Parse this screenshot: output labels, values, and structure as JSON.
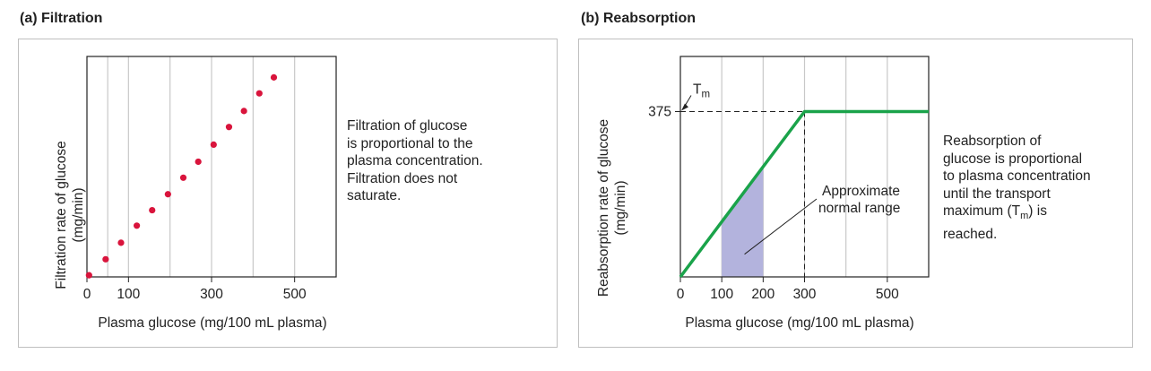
{
  "panels": {
    "a": {
      "title": "(a) Filtration",
      "description": [
        "Filtration of glucose",
        "is proportional to the",
        "plasma concentration.",
        "Filtration does not",
        "saturate."
      ]
    },
    "b": {
      "title": "(b) Reabsorption",
      "description": [
        "Reabsorption of",
        "glucose is proportional",
        "to plasma concentration",
        "until the transport",
        "maximum (Tm) is",
        "reached."
      ]
    }
  },
  "colors": {
    "dots": "#d9143c",
    "line": "#1aa34a",
    "shade": "#b3b3dd",
    "grid": "#c8c8c8"
  },
  "chart_data": [
    {
      "type": "scatter",
      "xlabel": "Plasma glucose (mg/100 mL plasma)",
      "ylabel": "Filtration rate of glucose (mg/min)",
      "xticks": [
        0,
        100,
        300,
        500
      ],
      "xgrid": [
        50,
        100,
        200,
        300,
        400,
        500
      ],
      "xlim": [
        0,
        600
      ],
      "ylim": [
        0,
        400
      ],
      "grid": true,
      "points": [
        {
          "x": 5,
          "y": 3
        },
        {
          "x": 45,
          "y": 32
        },
        {
          "x": 82,
          "y": 62
        },
        {
          "x": 120,
          "y": 93
        },
        {
          "x": 157,
          "y": 121
        },
        {
          "x": 195,
          "y": 150
        },
        {
          "x": 232,
          "y": 180
        },
        {
          "x": 268,
          "y": 209
        },
        {
          "x": 305,
          "y": 240
        },
        {
          "x": 342,
          "y": 272
        },
        {
          "x": 378,
          "y": 301
        },
        {
          "x": 415,
          "y": 333
        },
        {
          "x": 450,
          "y": 362
        }
      ]
    },
    {
      "type": "line",
      "xlabel": "Plasma glucose (mg/100 mL plasma)",
      "ylabel": "Reabsorption rate of glucose (mg/min)",
      "xticks": [
        0,
        100,
        200,
        300,
        500
      ],
      "xgrid": [
        100,
        200,
        300,
        400,
        500
      ],
      "xlim": [
        0,
        600
      ],
      "ylim": [
        0,
        500
      ],
      "grid": true,
      "series": [
        {
          "x": [
            0,
            300,
            600
          ],
          "y": [
            0,
            375,
            375
          ]
        }
      ],
      "tm_value": 375,
      "tm_label": "T",
      "tm_sub": "m",
      "shaded_range": [
        100,
        200
      ],
      "annotation": [
        "Approximate",
        "normal range"
      ]
    }
  ]
}
